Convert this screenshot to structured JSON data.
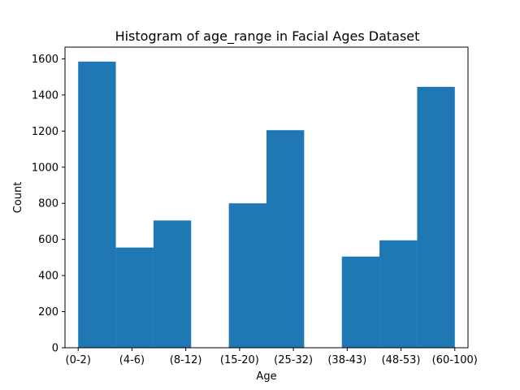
{
  "chart_data": {
    "type": "bar",
    "title": "Histogram of age_range in Facial Ages Dataset",
    "xlabel": "Age",
    "ylabel": "Count",
    "bar_color": "#1f77b4",
    "categories": [
      "(0-2)",
      "(4-6)",
      "(8-12)",
      "(15-20)",
      "(25-32)",
      "(38-43)",
      "(48-53)",
      "(60-100)"
    ],
    "bins": [
      {
        "from": 0,
        "to": 1,
        "count": 1585
      },
      {
        "from": 1,
        "to": 2,
        "count": 555
      },
      {
        "from": 2,
        "to": 3,
        "count": 705
      },
      {
        "from": 3,
        "to": 4,
        "count": 0
      },
      {
        "from": 4,
        "to": 5,
        "count": 800
      },
      {
        "from": 5,
        "to": 6,
        "count": 1205
      },
      {
        "from": 6,
        "to": 7,
        "count": 0
      },
      {
        "from": 7,
        "to": 8,
        "count": 505
      },
      {
        "from": 8,
        "to": 9,
        "count": 595
      },
      {
        "from": 9,
        "to": 10,
        "count": 1445
      }
    ],
    "xlim": [
      -0.35,
      10.35
    ],
    "ylim": [
      0,
      1665
    ],
    "yticks": [
      0,
      200,
      400,
      600,
      800,
      1000,
      1200,
      1400,
      1600
    ],
    "grid": false,
    "legend": false
  }
}
